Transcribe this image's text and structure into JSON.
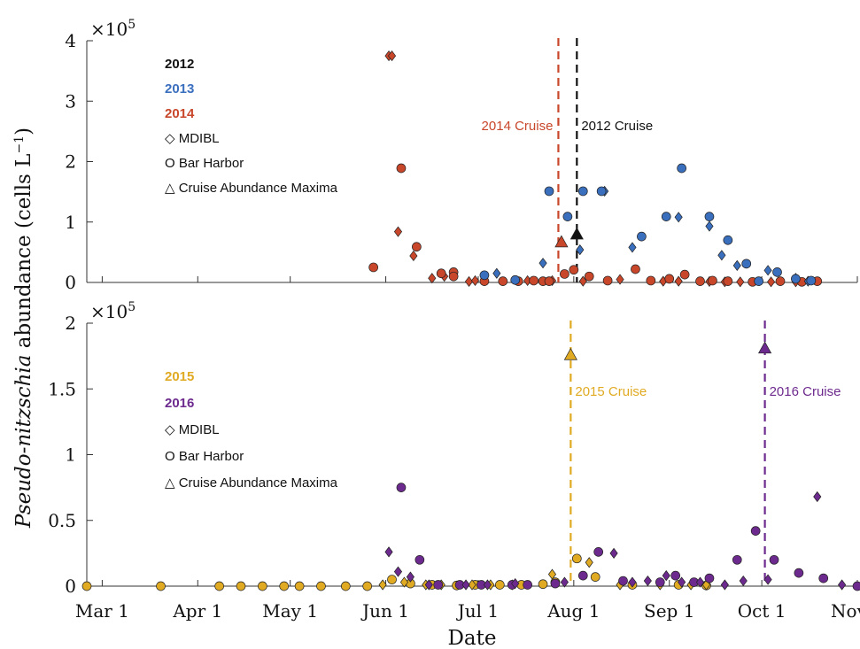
{
  "figure": {
    "ylabel_main": "Pseudo-nitzschia",
    "ylabel_rest": " abundance (cells L",
    "ylabel_sup": "−1",
    "ylabel_close": ")",
    "xlabel": "Date",
    "x_tick_labels": [
      "Mar 1",
      "Apr 1",
      "May 1",
      "Jun 1",
      "Jul 1",
      "Aug 1",
      "Sep 1",
      "Oct 1",
      "Nov 1"
    ]
  },
  "chart_data": [
    {
      "type": "scatter",
      "panel": "top",
      "x_unit": "day-of-year",
      "x_ticks": [
        60,
        91,
        121,
        152,
        182,
        213,
        244,
        274,
        305
      ],
      "xlim": [
        55,
        305
      ],
      "ylim": [
        0,
        400000
      ],
      "y_ticks": [
        0,
        100000,
        200000,
        300000,
        400000
      ],
      "y_tick_labels": [
        "0",
        "1",
        "2",
        "3",
        "4"
      ],
      "y_exponent": "×10",
      "y_exponent_power": "5",
      "grid": false,
      "legend": {
        "years": [
          {
            "label": "2012",
            "color": "#111111"
          },
          {
            "label": "2013",
            "color": "#3a6fbe"
          },
          {
            "label": "2014",
            "color": "#c8462a"
          }
        ],
        "symbols": [
          {
            "glyph": "◇",
            "label": "MDIBL"
          },
          {
            "glyph": "O",
            "label": "Bar Harbor"
          },
          {
            "glyph": "△",
            "label": "Cruise Abundance Maxima"
          }
        ]
      },
      "cruise_lines": [
        {
          "label": "2014 Cruise",
          "x": 208,
          "color": "#c8462a",
          "label_side": "left"
        },
        {
          "label": "2012 Cruise",
          "x": 214,
          "color": "#111111",
          "label_side": "right"
        }
      ],
      "series": [
        {
          "year": "2014",
          "site": "MDIBL",
          "marker": "diamond",
          "color": "#c8462a",
          "points": [
            [
              153,
              375000
            ],
            [
              154,
              375000
            ],
            [
              156,
              84000
            ],
            [
              161,
              44000
            ],
            [
              167,
              7000
            ],
            [
              171,
              10000
            ],
            [
              179,
              1500
            ],
            [
              181,
              3000
            ],
            [
              198,
              3000
            ],
            [
              206,
              3000
            ],
            [
              216,
              2000
            ],
            [
              228,
              5000
            ],
            [
              242,
              2000
            ],
            [
              247,
              2000
            ],
            [
              257,
              1500
            ],
            [
              262,
              1000
            ],
            [
              267,
              1000
            ],
            [
              277,
              1000
            ],
            [
              285,
              1000
            ]
          ]
        },
        {
          "year": "2014",
          "site": "Bar Harbor",
          "marker": "circle",
          "color": "#c8462a",
          "points": [
            [
              148,
              25000
            ],
            [
              157,
              189000
            ],
            [
              162,
              59000
            ],
            [
              170,
              15000
            ],
            [
              174,
              17000
            ],
            [
              174,
              10000
            ],
            [
              184,
              2000
            ],
            [
              190,
              2000
            ],
            [
              195,
              2000
            ],
            [
              200,
              3000
            ],
            [
              203,
              2000
            ],
            [
              205,
              2000
            ],
            [
              210,
              14000
            ],
            [
              213,
              21000
            ],
            [
              218,
              10000
            ],
            [
              224,
              3000
            ],
            [
              233,
              22000
            ],
            [
              238,
              3000
            ],
            [
              244,
              6000
            ],
            [
              249,
              13000
            ],
            [
              254,
              2000
            ],
            [
              258,
              3000
            ],
            [
              263,
              2000
            ],
            [
              271,
              1000
            ],
            [
              280,
              2000
            ],
            [
              287,
              1000
            ],
            [
              292,
              2000
            ]
          ]
        },
        {
          "year": "2013",
          "site": "MDIBL",
          "marker": "diamond",
          "color": "#3a6fbe",
          "points": [
            [
              188,
              15000
            ],
            [
              203,
              32000
            ],
            [
              215,
              54000
            ],
            [
              223,
              151000
            ],
            [
              232,
              58000
            ],
            [
              247,
              108000
            ],
            [
              257,
              93000
            ],
            [
              261,
              45000
            ],
            [
              266,
              28000
            ],
            [
              276,
              20000
            ],
            [
              285,
              7000
            ],
            [
              289,
              2000
            ]
          ]
        },
        {
          "year": "2013",
          "site": "Bar Harbor",
          "marker": "circle",
          "color": "#3a6fbe",
          "points": [
            [
              184,
              12000
            ],
            [
              194,
              4000
            ],
            [
              205,
              151000
            ],
            [
              211,
              109000
            ],
            [
              216,
              151000
            ],
            [
              222,
              151000
            ],
            [
              235,
              76000
            ],
            [
              243,
              109000
            ],
            [
              248,
              189000
            ],
            [
              257,
              109000
            ],
            [
              263,
              70000
            ],
            [
              269,
              31000
            ],
            [
              273,
              2000
            ],
            [
              279,
              17000
            ],
            [
              285,
              6000
            ],
            [
              290,
              3000
            ]
          ]
        },
        {
          "year": "2014",
          "site": "Cruise",
          "marker": "triangle",
          "color": "#c8462a",
          "points": [
            [
              209,
              67000
            ]
          ]
        },
        {
          "year": "2012",
          "site": "Cruise",
          "marker": "triangle",
          "color": "#111111",
          "points": [
            [
              214,
              80000
            ]
          ]
        }
      ]
    },
    {
      "type": "scatter",
      "panel": "bottom",
      "x_unit": "day-of-year",
      "x_ticks": [
        60,
        91,
        121,
        152,
        182,
        213,
        244,
        274,
        305
      ],
      "xlim": [
        55,
        305
      ],
      "ylim": [
        0,
        200000
      ],
      "y_ticks": [
        0,
        50000,
        100000,
        150000,
        200000
      ],
      "y_tick_labels": [
        "0",
        "0.5",
        "1",
        "1.5",
        "2"
      ],
      "y_exponent": "×10",
      "y_exponent_power": "5",
      "grid": false,
      "legend": {
        "years": [
          {
            "label": "2015",
            "color": "#e0aa22"
          },
          {
            "label": "2016",
            "color": "#6d2a8e"
          }
        ],
        "symbols": [
          {
            "glyph": "◇",
            "label": "MDIBL"
          },
          {
            "glyph": "O",
            "label": "Bar Harbor"
          },
          {
            "glyph": "△",
            "label": "Cruise Abundance Maxima"
          }
        ]
      },
      "cruise_lines": [
        {
          "label": "2015 Cruise",
          "x": 212,
          "color": "#e0aa22",
          "label_side": "right"
        },
        {
          "label": "2016 Cruise",
          "x": 275,
          "color": "#6d2a8e",
          "label_side": "right"
        }
      ],
      "series": [
        {
          "year": "2015",
          "site": "Bar Harbor",
          "marker": "circle",
          "color": "#e0aa22",
          "points": [
            [
              55,
              0
            ],
            [
              79,
              0
            ],
            [
              98,
              0
            ],
            [
              105,
              0
            ],
            [
              112,
              0
            ],
            [
              119,
              0
            ],
            [
              124,
              0
            ],
            [
              131,
              0
            ],
            [
              139,
              0
            ],
            [
              146,
              0
            ],
            [
              154,
              5000
            ],
            [
              160,
              2000
            ],
            [
              167,
              1000
            ],
            [
              175,
              500
            ],
            [
              181,
              1000
            ],
            [
              189,
              1000
            ],
            [
              196,
              1000
            ],
            [
              203,
              1500
            ],
            [
              207,
              3000
            ],
            [
              214,
              21000
            ],
            [
              220,
              7000
            ],
            [
              232,
              1000
            ],
            [
              247,
              1000
            ],
            [
              256,
              500
            ]
          ]
        },
        {
          "year": "2015",
          "site": "MDIBL",
          "marker": "diamond",
          "color": "#e0aa22",
          "points": [
            [
              151,
              1000
            ],
            [
              158,
              3000
            ],
            [
              165,
              1000
            ],
            [
              170,
              1000
            ],
            [
              180,
              1000
            ],
            [
              186,
              1000
            ],
            [
              193,
              1000
            ],
            [
              206,
              9000
            ],
            [
              218,
              18000
            ],
            [
              228,
              1000
            ],
            [
              241,
              1000
            ],
            [
              251,
              1000
            ],
            [
              256,
              1000
            ]
          ]
        },
        {
          "year": "2016",
          "site": "Bar Harbor",
          "marker": "circle",
          "color": "#6d2a8e",
          "points": [
            [
              157,
              75000
            ],
            [
              163,
              20000
            ],
            [
              169,
              1000
            ],
            [
              176,
              1000
            ],
            [
              183,
              1000
            ],
            [
              193,
              1000
            ],
            [
              198,
              1000
            ],
            [
              207,
              2000
            ],
            [
              216,
              8000
            ],
            [
              221,
              26000
            ],
            [
              229,
              4000
            ],
            [
              241,
              3000
            ],
            [
              246,
              8000
            ],
            [
              252,
              3000
            ],
            [
              257,
              6000
            ],
            [
              266,
              20000
            ],
            [
              272,
              42000
            ],
            [
              278,
              20000
            ],
            [
              286,
              10000
            ],
            [
              294,
              6000
            ],
            [
              305,
              0
            ]
          ]
        },
        {
          "year": "2016",
          "site": "MDIBL",
          "marker": "diamond",
          "color": "#6d2a8e",
          "points": [
            [
              153,
              26000
            ],
            [
              156,
              11000
            ],
            [
              160,
              7000
            ],
            [
              166,
              1000
            ],
            [
              178,
              1000
            ],
            [
              185,
              1000
            ],
            [
              194,
              2000
            ],
            [
              210,
              3000
            ],
            [
              226,
              25000
            ],
            [
              232,
              3000
            ],
            [
              237,
              4000
            ],
            [
              243,
              8000
            ],
            [
              248,
              3000
            ],
            [
              254,
              3000
            ],
            [
              262,
              1000
            ],
            [
              268,
              4000
            ],
            [
              276,
              5000
            ],
            [
              292,
              68000
            ],
            [
              300,
              1000
            ]
          ]
        },
        {
          "year": "2015",
          "site": "Cruise",
          "marker": "triangle",
          "color": "#e0aa22",
          "points": [
            [
              212,
              176000
            ]
          ]
        },
        {
          "year": "2016",
          "site": "Cruise",
          "marker": "triangle",
          "color": "#6d2a8e",
          "points": [
            [
              275,
              181000
            ]
          ]
        }
      ]
    }
  ]
}
